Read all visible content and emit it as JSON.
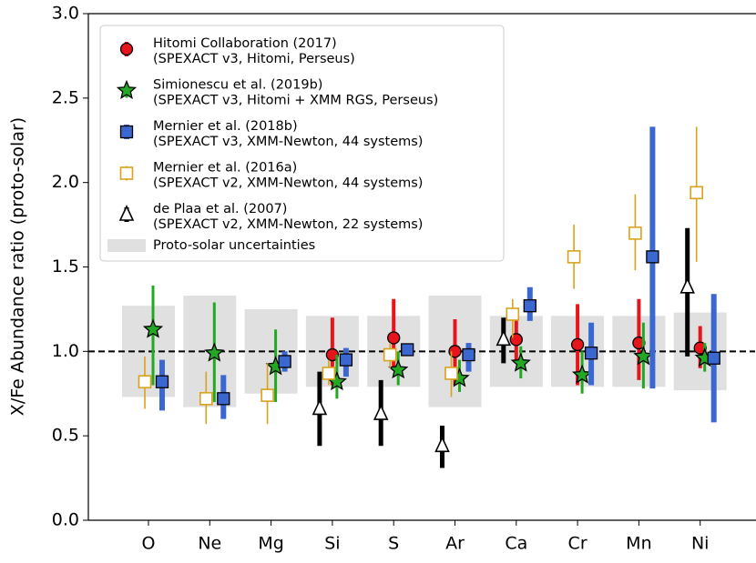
{
  "chart_data": {
    "type": "errorbar",
    "ylabel": "X/Fe Abundance ratio (proto-solar)",
    "categories": [
      "O",
      "Ne",
      "Mg",
      "Si",
      "S",
      "Ar",
      "Ca",
      "Cr",
      "Mn",
      "Ni"
    ],
    "ylim": [
      0,
      3.0
    ],
    "yticks": [
      {
        "value": 0,
        "label": "0.0"
      },
      0.5,
      {
        "value": 1,
        "label": "1.0"
      },
      1.5,
      {
        "value": 2,
        "label": "2.0"
      },
      2.5,
      {
        "value": 3,
        "label": "3.0"
      }
    ],
    "hline": 1,
    "band": {
      "name": "Proto-solar uncertainties",
      "color": "#e0e0e0",
      "lower": [
        0.73,
        0.67,
        0.75,
        0.79,
        0.79,
        0.67,
        0.79,
        0.79,
        0.79,
        0.77
      ],
      "upper": [
        1.27,
        1.33,
        1.25,
        1.21,
        1.21,
        1.33,
        1.21,
        1.21,
        1.21,
        1.23
      ]
    },
    "series": [
      {
        "name": "Hitomi Collaboration (2017)",
        "detail": "(SPEXACT v3, Hitomi, Perseus)",
        "marker": "circle",
        "color": "#e8141b",
        "values": [
          null,
          null,
          null,
          0.98,
          1.08,
          1.0,
          1.07,
          1.04,
          1.05,
          1.02
        ],
        "lower": [
          null,
          null,
          null,
          0.8,
          0.9,
          0.8,
          0.95,
          0.8,
          0.83,
          0.9
        ],
        "upper": [
          null,
          null,
          null,
          1.2,
          1.31,
          1.19,
          1.2,
          1.28,
          1.31,
          1.15
        ]
      },
      {
        "name": "Simionescu et al. (2019b)",
        "detail": "(SPEXACT v3, Hitomi + XMM RGS, Perseus)",
        "marker": "star",
        "color": "#22a822",
        "values": [
          1.13,
          0.99,
          0.91,
          0.82,
          0.89,
          0.84,
          0.93,
          0.86,
          0.97,
          0.96
        ],
        "lower": [
          0.8,
          0.7,
          0.7,
          0.72,
          0.8,
          0.76,
          0.84,
          0.75,
          0.78,
          0.88
        ],
        "upper": [
          1.39,
          1.29,
          1.13,
          0.98,
          1.0,
          0.95,
          1.03,
          1.0,
          1.17,
          1.05
        ]
      },
      {
        "name": "Mernier et al. (2018b)",
        "detail": "(SPEXACT v3, XMM-Newton, 44 systems)",
        "marker": "square",
        "color": "#3b67d0",
        "values": [
          0.82,
          0.72,
          0.94,
          0.95,
          1.01,
          0.98,
          1.27,
          0.99,
          1.56,
          0.96
        ],
        "lower": [
          0.65,
          0.6,
          0.88,
          0.85,
          0.98,
          0.88,
          1.18,
          0.8,
          0.78,
          0.58
        ],
        "upper": [
          0.95,
          0.86,
          1.0,
          1.02,
          1.03,
          1.05,
          1.38,
          1.17,
          2.33,
          1.34
        ]
      },
      {
        "name": "Mernier et al. (2016a)",
        "detail": "(SPEXACT v2, XMM-Newton, 44 systems)",
        "marker": "open-square",
        "color": "#d9a21b",
        "values": [
          0.82,
          0.72,
          0.74,
          0.87,
          0.98,
          0.87,
          1.22,
          1.56,
          1.7,
          1.94
        ],
        "lower": [
          0.66,
          0.57,
          0.57,
          0.8,
          0.9,
          0.73,
          1.08,
          1.37,
          1.48,
          1.53
        ],
        "upper": [
          0.97,
          0.88,
          0.93,
          0.95,
          1.05,
          1.0,
          1.31,
          1.75,
          1.93,
          2.33
        ]
      },
      {
        "name": "de Plaa et al. (2007)",
        "detail": "(SPEXACT v2, XMM-Newton, 22 systems)",
        "marker": "triangle",
        "color": "#000000",
        "values": [
          null,
          null,
          null,
          0.66,
          0.63,
          0.44,
          1.07,
          null,
          null,
          1.38
        ],
        "lower": [
          null,
          null,
          null,
          0.44,
          0.44,
          0.31,
          0.93,
          null,
          null,
          0.97
        ],
        "upper": [
          null,
          null,
          null,
          0.88,
          0.83,
          0.56,
          1.2,
          null,
          null,
          1.73
        ]
      }
    ]
  }
}
